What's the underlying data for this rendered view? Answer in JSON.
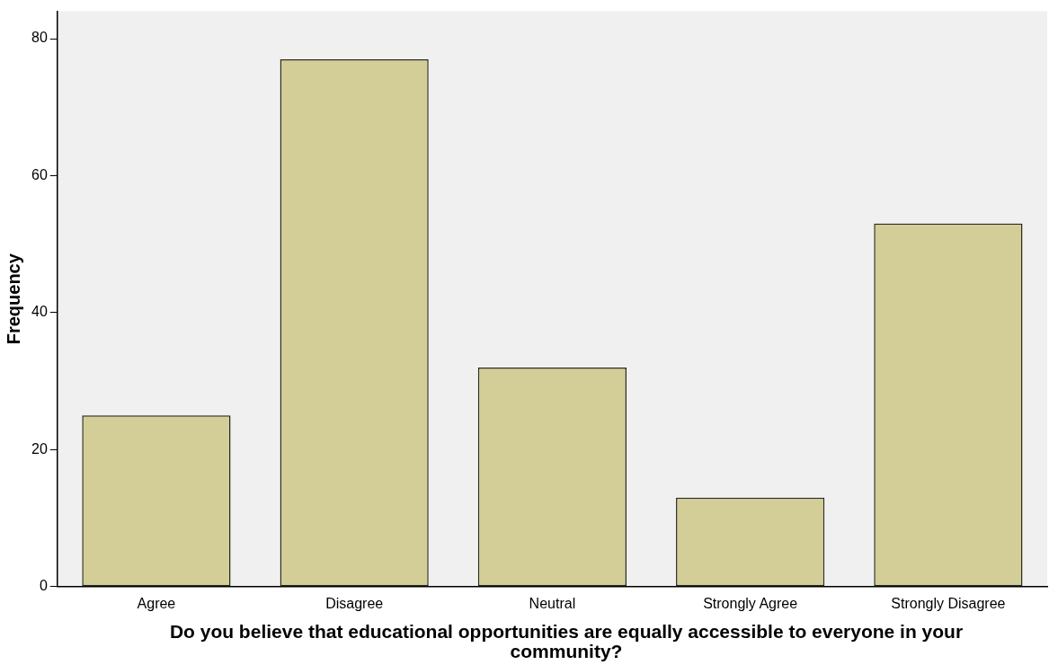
{
  "chart_data": {
    "type": "bar",
    "xlabel": "Do you believe that educational opportunities are equally accessible to everyone in your community?",
    "ylabel": "Frequency",
    "categories": [
      "Agree",
      "Disagree",
      "Neutral",
      "Strongly Agree",
      "Strongly Disagree"
    ],
    "values": [
      25,
      77,
      32,
      13,
      53
    ],
    "color": "#d3ce97",
    "ylim": [
      0,
      84
    ],
    "yticks": [
      0,
      20,
      40,
      60,
      80
    ],
    "grid": false,
    "legend": false
  }
}
